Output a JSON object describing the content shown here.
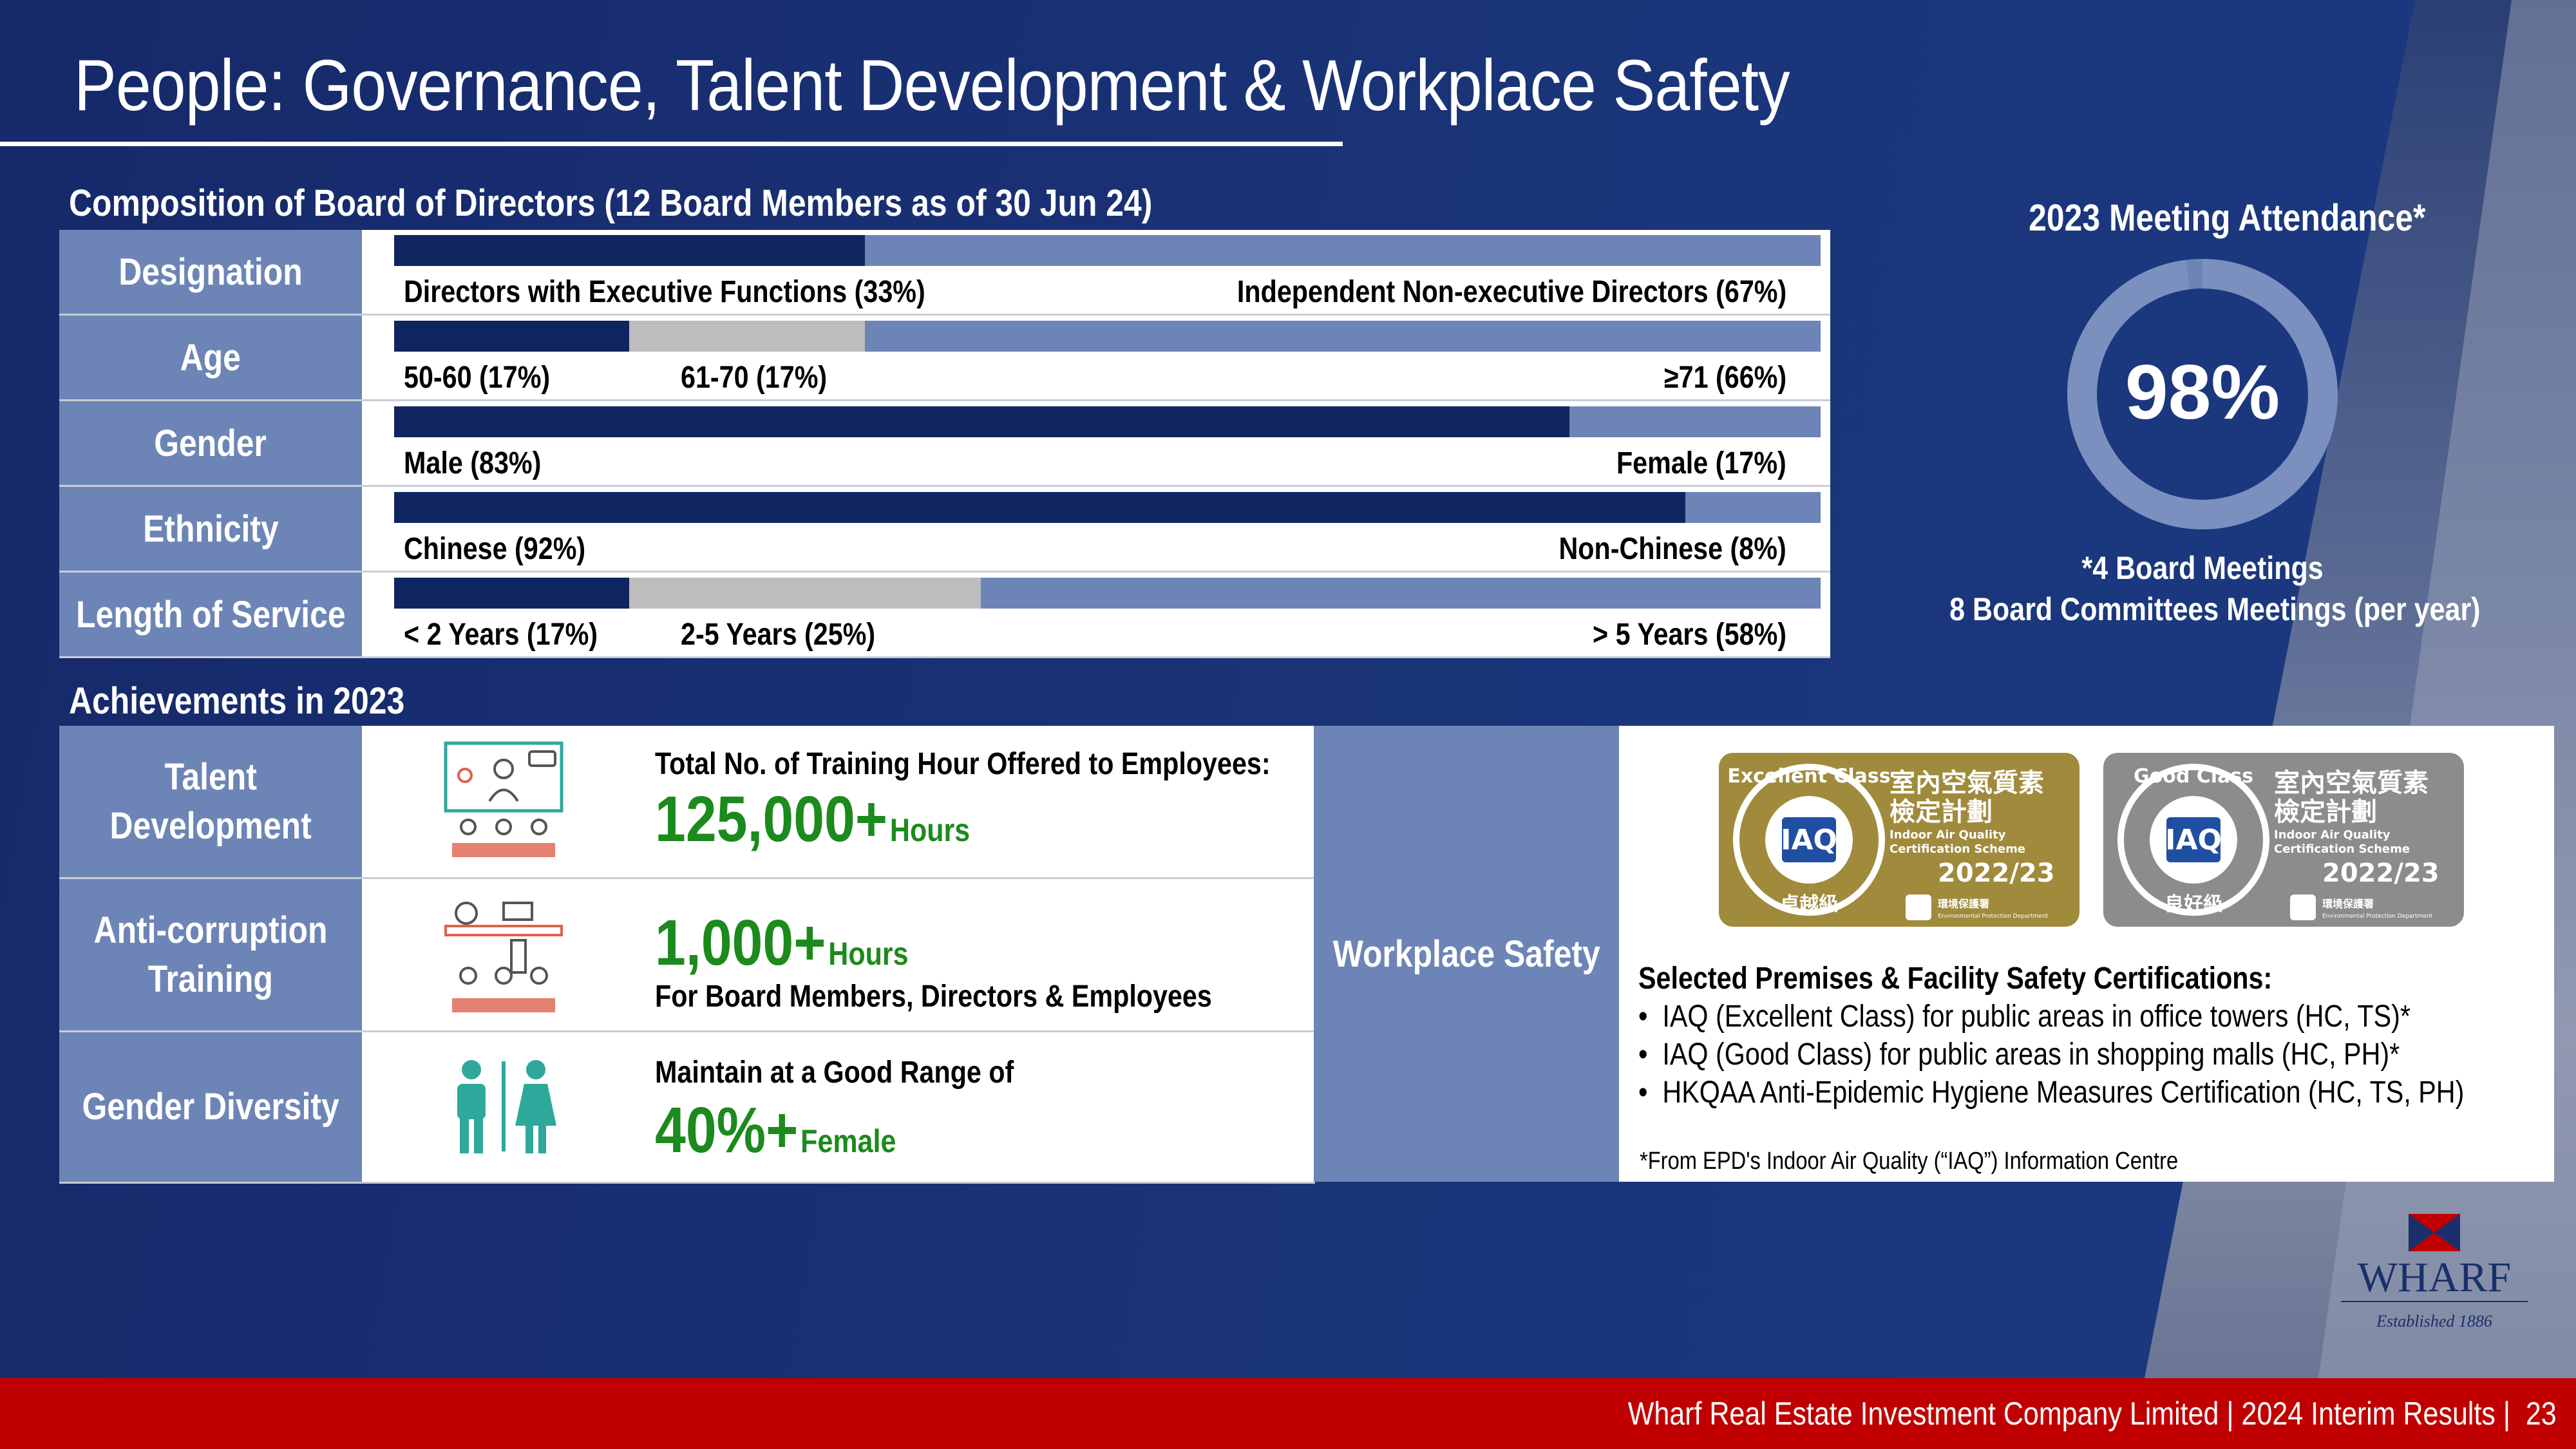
{
  "title": "People: Governance, Talent Development & Workplace Safety",
  "composition": {
    "heading": "Composition of Board of Directors (12 Board Members as of 30 Jun 24)",
    "rows": [
      {
        "label": "Designation",
        "segments": [
          {
            "text": "Directors with Executive Functions (33%)",
            "value": 33
          },
          {
            "text": "Independent Non-executive Directors (67%)",
            "value": 67
          }
        ]
      },
      {
        "label": "Age",
        "segments": [
          {
            "text": "50-60 (17%)",
            "value": 17
          },
          {
            "text": "61-70 (17%)",
            "value": 17
          },
          {
            "text": "≥71 (66%)",
            "value": 66
          }
        ]
      },
      {
        "label": "Gender",
        "segments": [
          {
            "text": "Male (83%)",
            "value": 83
          },
          {
            "text": "Female (17%)",
            "value": 17
          }
        ]
      },
      {
        "label": "Ethnicity",
        "segments": [
          {
            "text": "Chinese (92%)",
            "value": 92
          },
          {
            "text": "Non-Chinese (8%)",
            "value": 8
          }
        ]
      },
      {
        "label": "Length of Service",
        "segments": [
          {
            "text": "< 2 Years (17%)",
            "value": 17
          },
          {
            "text": "2-5 Years (25%)",
            "value": 25
          },
          {
            "text": "> 5 Years (58%)",
            "value": 58
          }
        ]
      }
    ]
  },
  "attendance": {
    "heading": "2023 Meeting Attendance*",
    "value_text": "98%",
    "value": 98,
    "note_line1": "*4 Board Meetings",
    "note_line2": "8 Board Committees Meetings (per year)"
  },
  "achievements": {
    "heading": "Achievements in 2023",
    "talent": {
      "label_line1": "Talent",
      "label_line2": "Development",
      "caption": "Total No. of Training Hour Offered to Employees:",
      "figure": "125,000+",
      "unit": "Hours"
    },
    "anticorruption": {
      "label_line1": "Anti-corruption",
      "label_line2": "Training",
      "figure": "1,000+",
      "unit": "Hours",
      "caption": "For Board Members, Directors & Employees"
    },
    "gender": {
      "label": "Gender Diversity",
      "caption": "Maintain at a Good Range of",
      "figure": "40%+",
      "unit": "Female"
    }
  },
  "workplace_safety": {
    "label": "Workplace Safety",
    "badges": [
      {
        "ring_text": "Excellent Class",
        "grade_zh": "卓越級",
        "title_zh_1": "室內空氣質素",
        "title_zh_2": "檢定計劃",
        "title_en_1": "Indoor Air Quality",
        "title_en_2": "Certification Scheme",
        "year": "2022/23",
        "dept_zh": "環境保護署",
        "dept_en": "Environmental Protection Department",
        "color": "#a08a3c"
      },
      {
        "ring_text": "Good Class",
        "grade_zh": "良好級",
        "title_zh_1": "室內空氣質素",
        "title_zh_2": "檢定計劃",
        "title_en_1": "Indoor Air Quality",
        "title_en_2": "Certification Scheme",
        "year": "2022/23",
        "dept_zh": "環境保護署",
        "dept_en": "Environmental Protection Department",
        "color": "#8c8c8c"
      }
    ],
    "heading": "Selected Premises & Facility Safety Certifications:",
    "items": [
      "IAQ (Excellent Class) for public areas in office towers (HC, TS)*",
      "IAQ (Good Class) for public areas in shopping malls (HC, PH)*",
      "HKQAA Anti-Epidemic Hygiene Measures Certification (HC, TS, PH)"
    ],
    "footnote": "*From EPD's Indoor Air Quality (“IAQ”) Information Centre"
  },
  "logo": {
    "name": "WHARF",
    "tagline": "Established 1886"
  },
  "footer": {
    "text": "Wharf Real Estate Investment Company Limited | 2024 Interim Results |",
    "page": "23"
  }
}
